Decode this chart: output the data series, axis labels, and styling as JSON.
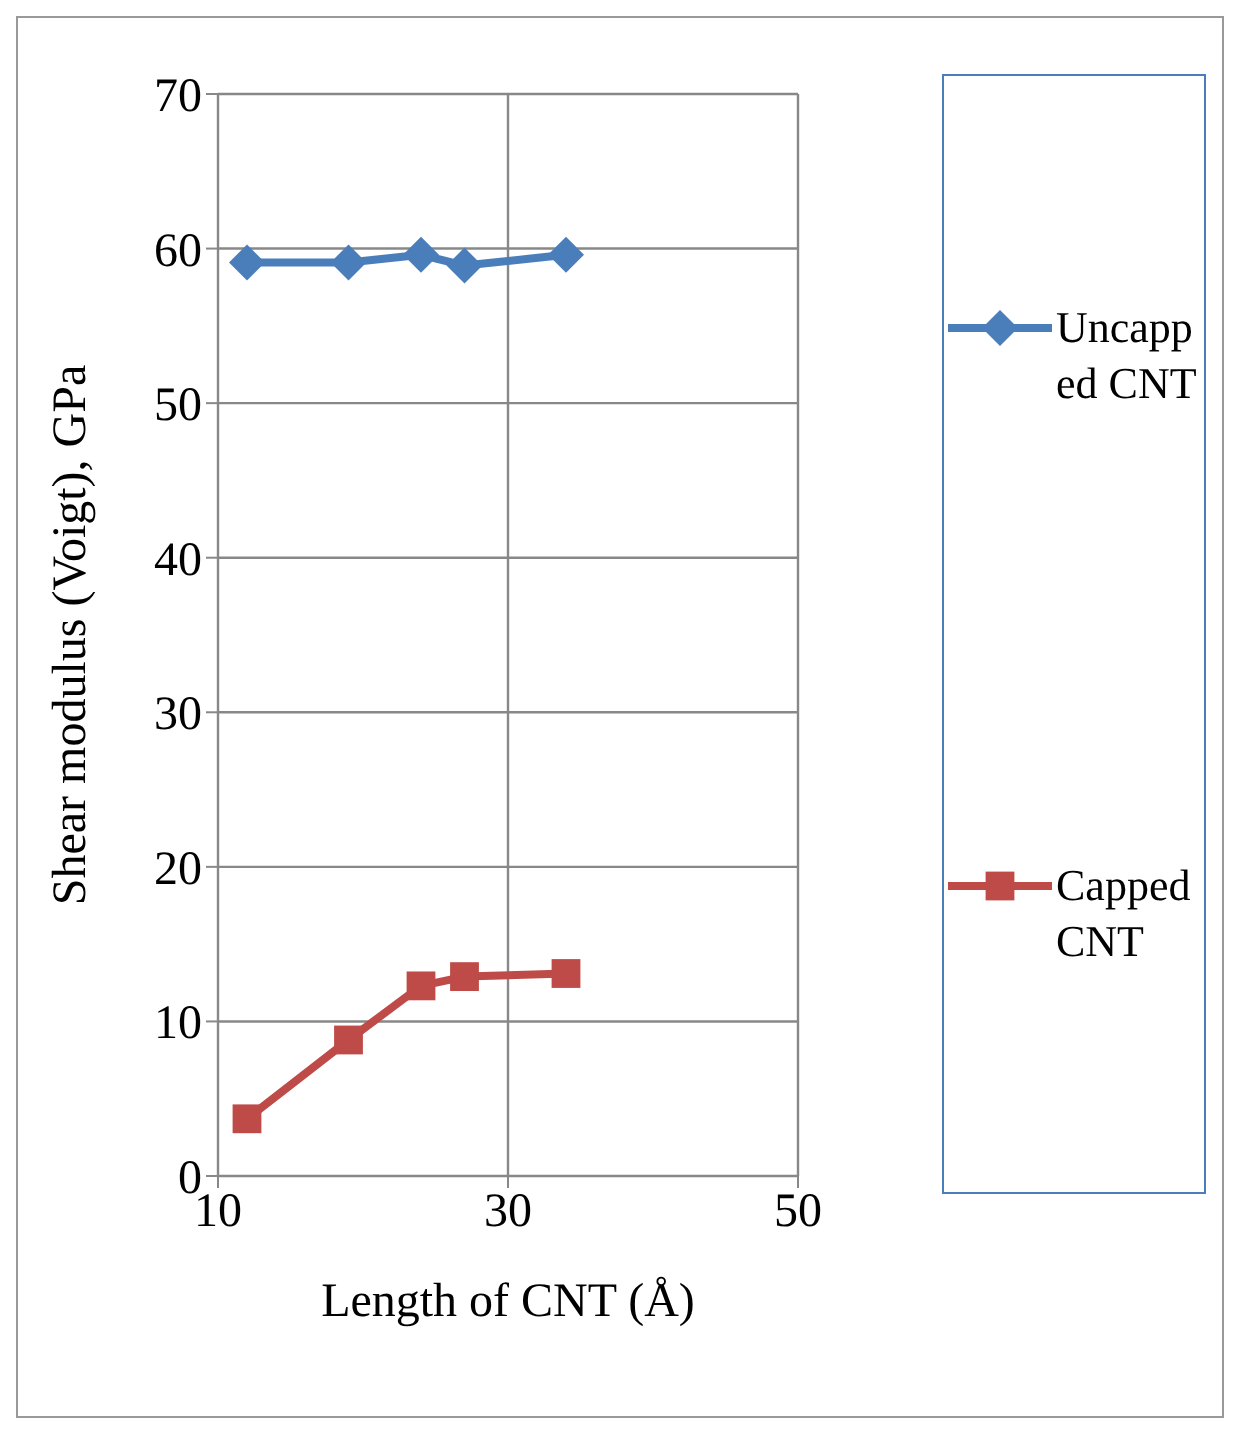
{
  "chart_data": {
    "type": "line",
    "xlabel": "Length of CNT (Å)",
    "ylabel": "Shear modulus (Voigt), GPa",
    "xlim": [
      10,
      50
    ],
    "xticks": [
      10,
      30,
      50
    ],
    "ylim": [
      0,
      70
    ],
    "yticks": [
      0,
      10,
      20,
      30,
      40,
      50,
      60,
      70
    ],
    "grid": true,
    "legend": "right",
    "series": [
      {
        "name": "Uncapped CNT",
        "color": "#4a7ebb",
        "marker": "diamond",
        "x": [
          12,
          19,
          24,
          27,
          34
        ],
        "values": [
          59.1,
          59.1,
          59.6,
          58.9,
          59.6
        ]
      },
      {
        "name": "Capped CNT",
        "color": "#be4b48",
        "marker": "square",
        "x": [
          12,
          19,
          24,
          27,
          34
        ],
        "values": [
          3.7,
          8.8,
          12.3,
          12.9,
          13.1
        ]
      }
    ]
  }
}
